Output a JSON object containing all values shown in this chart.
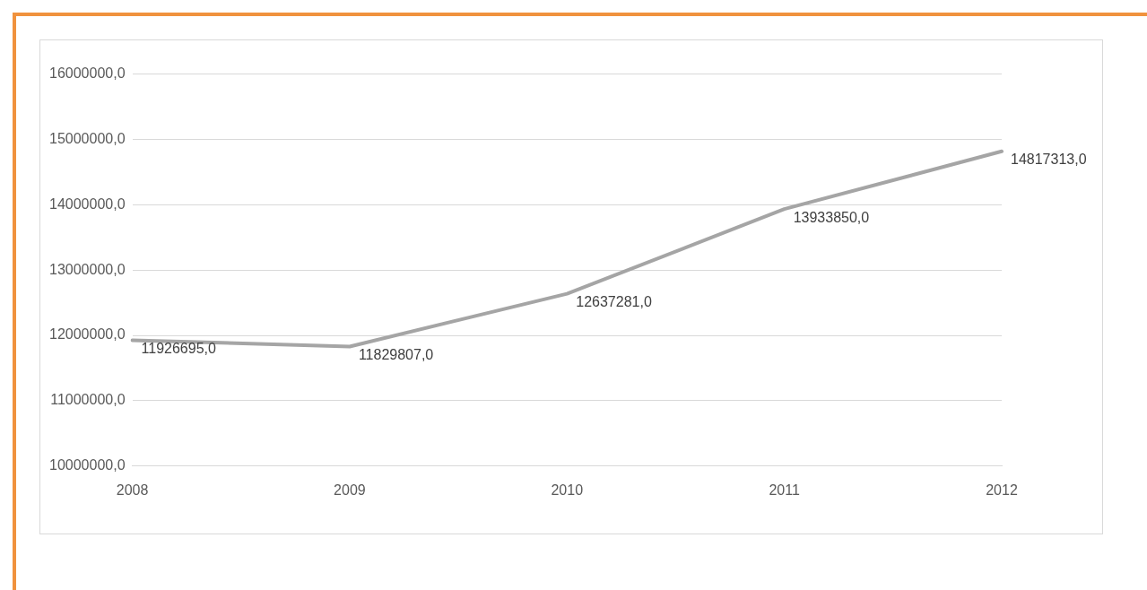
{
  "chart_data": {
    "type": "line",
    "categories": [
      "2008",
      "2009",
      "2010",
      "2011",
      "2012"
    ],
    "series": [
      {
        "color": "#a5a5a5",
        "values": [
          11926695,
          11829807,
          12637281,
          13933850,
          14817313
        ],
        "value_labels": [
          "11926695,0",
          "11829807,0",
          "12637281,0",
          "13933850,0",
          "14817313,0"
        ]
      }
    ],
    "ylim": [
      10000000,
      16000000
    ],
    "yticks": [
      {
        "value": 10000000,
        "label": "10000000,0"
      },
      {
        "value": 11000000,
        "label": "11000000,0"
      },
      {
        "value": 12000000,
        "label": "12000000,0"
      },
      {
        "value": 13000000,
        "label": "13000000,0"
      },
      {
        "value": 14000000,
        "label": "14000000,0"
      },
      {
        "value": 15000000,
        "label": "15000000,0"
      },
      {
        "value": 16000000,
        "label": "16000000,0"
      }
    ],
    "grid": "y",
    "legend": false,
    "marker": "none",
    "line_style": "solid"
  }
}
